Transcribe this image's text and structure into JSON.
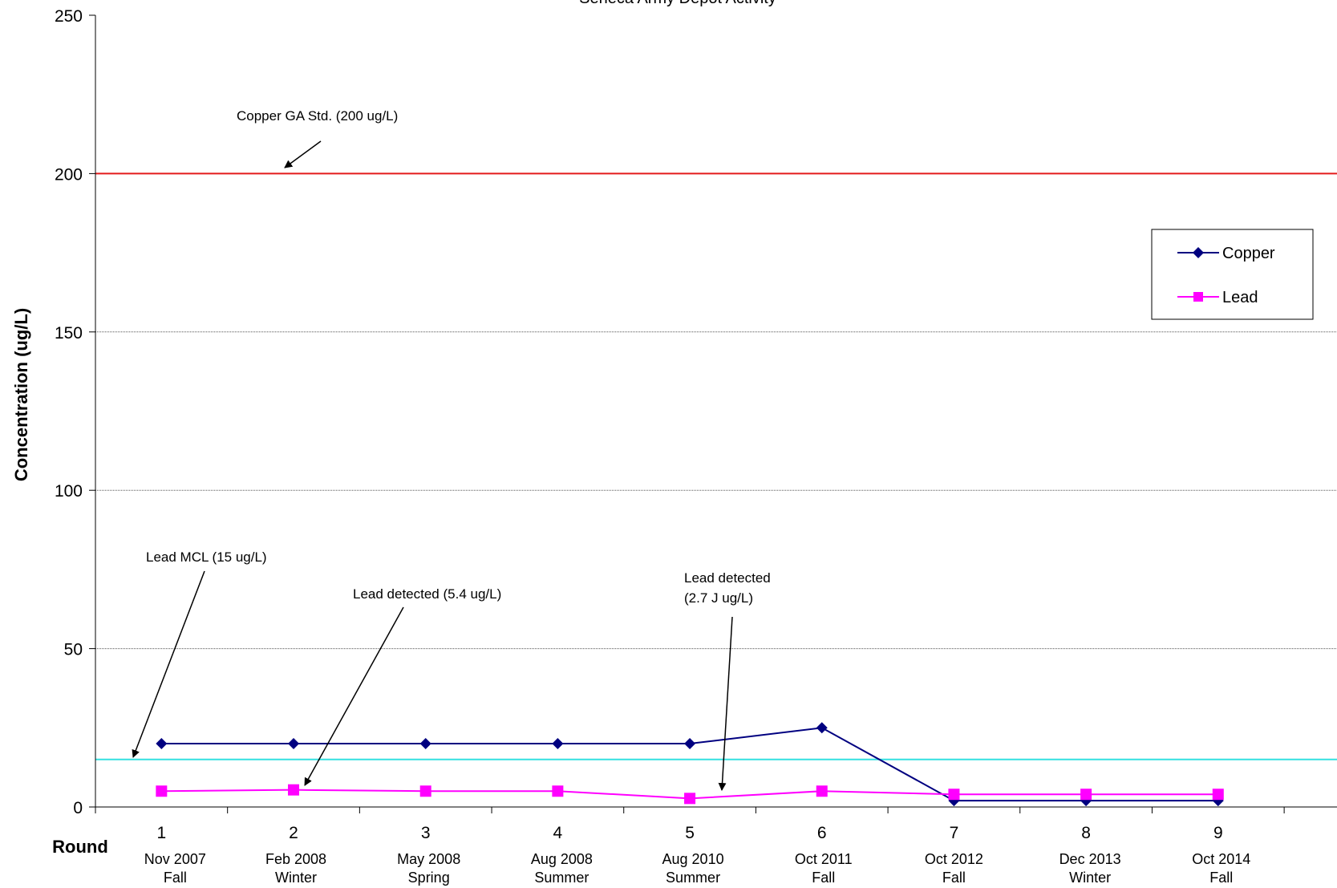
{
  "chart_data": {
    "type": "line",
    "title": "Seneca Army Depot Activity",
    "ylabel": "Concentration (ug/L)",
    "xlabel": "Round",
    "ylim": [
      0,
      250
    ],
    "yticks": [
      0,
      50,
      100,
      150,
      200,
      250
    ],
    "grid": true,
    "legend_position": "right",
    "x": [
      1,
      2,
      3,
      4,
      5,
      6,
      7,
      8,
      9
    ],
    "x_dates": [
      "Nov 2007",
      "Feb 2008",
      "May 2008",
      "Aug 2008",
      "Aug 2010",
      "Oct 2011",
      "Oct 2012",
      "Dec 2013",
      "Oct 2014"
    ],
    "x_seasons": [
      "Fall",
      "Winter",
      "Spring",
      "Summer",
      "Summer",
      "Fall",
      "Fall",
      "Winter",
      "Fall"
    ],
    "series": [
      {
        "name": "Copper",
        "color": "#000080",
        "marker": "diamond",
        "values": [
          20,
          20,
          20,
          20,
          20,
          25,
          2,
          2,
          2
        ]
      },
      {
        "name": "Lead",
        "color": "#ff00ff",
        "marker": "square",
        "values": [
          5,
          5.4,
          5,
          5,
          2.7,
          5,
          4,
          4,
          4
        ]
      }
    ],
    "reference_lines": [
      {
        "value": 200,
        "color": "#e41a1c",
        "label": "Copper GA Std. (200 ug/L)"
      },
      {
        "value": 15,
        "color": "#33e0e0",
        "label": "Lead MCL (15 ug/L)"
      }
    ],
    "annotations": [
      {
        "text": "Lead detected (5.4 ug/L)"
      },
      {
        "text_lines": [
          "Lead detected",
          "(2.7 J ug/L)"
        ]
      }
    ]
  }
}
